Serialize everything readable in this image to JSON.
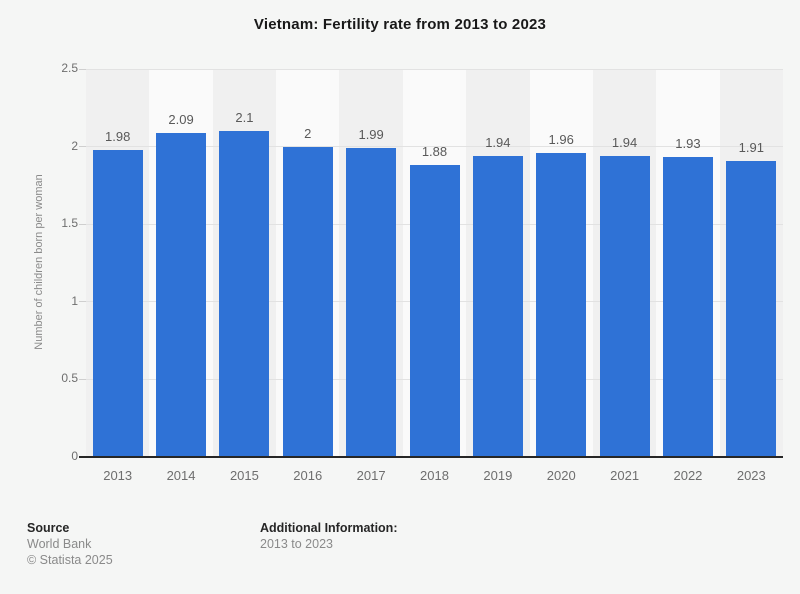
{
  "chart_data": {
    "type": "bar",
    "title": "Vietnam: Fertility rate from 2013 to 2023",
    "categories": [
      "2013",
      "2014",
      "2015",
      "2016",
      "2017",
      "2018",
      "2019",
      "2020",
      "2021",
      "2022",
      "2023"
    ],
    "values": [
      1.98,
      2.09,
      2.1,
      2,
      1.99,
      1.88,
      1.94,
      1.96,
      1.94,
      1.93,
      1.91
    ],
    "value_labels": [
      "1.98",
      "2.09",
      "2.1",
      "2",
      "1.99",
      "1.88",
      "1.94",
      "1.96",
      "1.94",
      "1.93",
      "1.91"
    ],
    "xlabel": "",
    "ylabel": "Number of children born per woman",
    "ylim": [
      0,
      2.5
    ],
    "yticks": [
      0,
      0.5,
      1,
      1.5,
      2,
      2.5
    ],
    "ytick_labels": [
      "0",
      "0.5",
      "1",
      "1.5",
      "2",
      "2.5"
    ],
    "grid": true,
    "legend": false,
    "legend_position": "none",
    "bar_color": "#2f72d6",
    "band_colors": [
      "#f0f0f0",
      "#fafafa"
    ]
  },
  "footer": {
    "source_heading": "Source",
    "source_lines": [
      "World Bank",
      "© Statista 2025"
    ],
    "additional_heading": "Additional Information:",
    "additional_lines": [
      "2013 to 2023"
    ]
  },
  "colors": {
    "background": "#f5f6f5",
    "gridline": "#e2e2e2",
    "axis_line": "#262626",
    "title_text": "#191919",
    "tick_text": "#6e6e6e",
    "value_text": "#595959",
    "axis_title_text": "#8a8a8a",
    "footer_text": "#8a8a8a"
  }
}
